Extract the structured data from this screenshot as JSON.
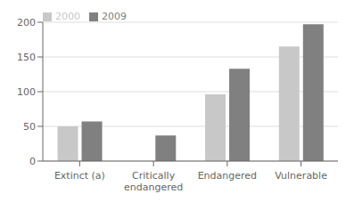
{
  "chart_data": {
    "type": "bar",
    "categories": [
      "Extinct (a)",
      "Critically\nendangered",
      "Endangered",
      "Vulnerable"
    ],
    "series": [
      {
        "name": "2000",
        "color": "#c8c8c8",
        "values": [
          50,
          0,
          96,
          165
        ]
      },
      {
        "name": "2009",
        "color": "#808080",
        "values": [
          57,
          37,
          133,
          197
        ]
      }
    ],
    "ylim": [
      0,
      200
    ],
    "yticks": [
      0,
      50,
      100,
      150,
      200
    ],
    "grid": true,
    "legend": "upper left"
  }
}
